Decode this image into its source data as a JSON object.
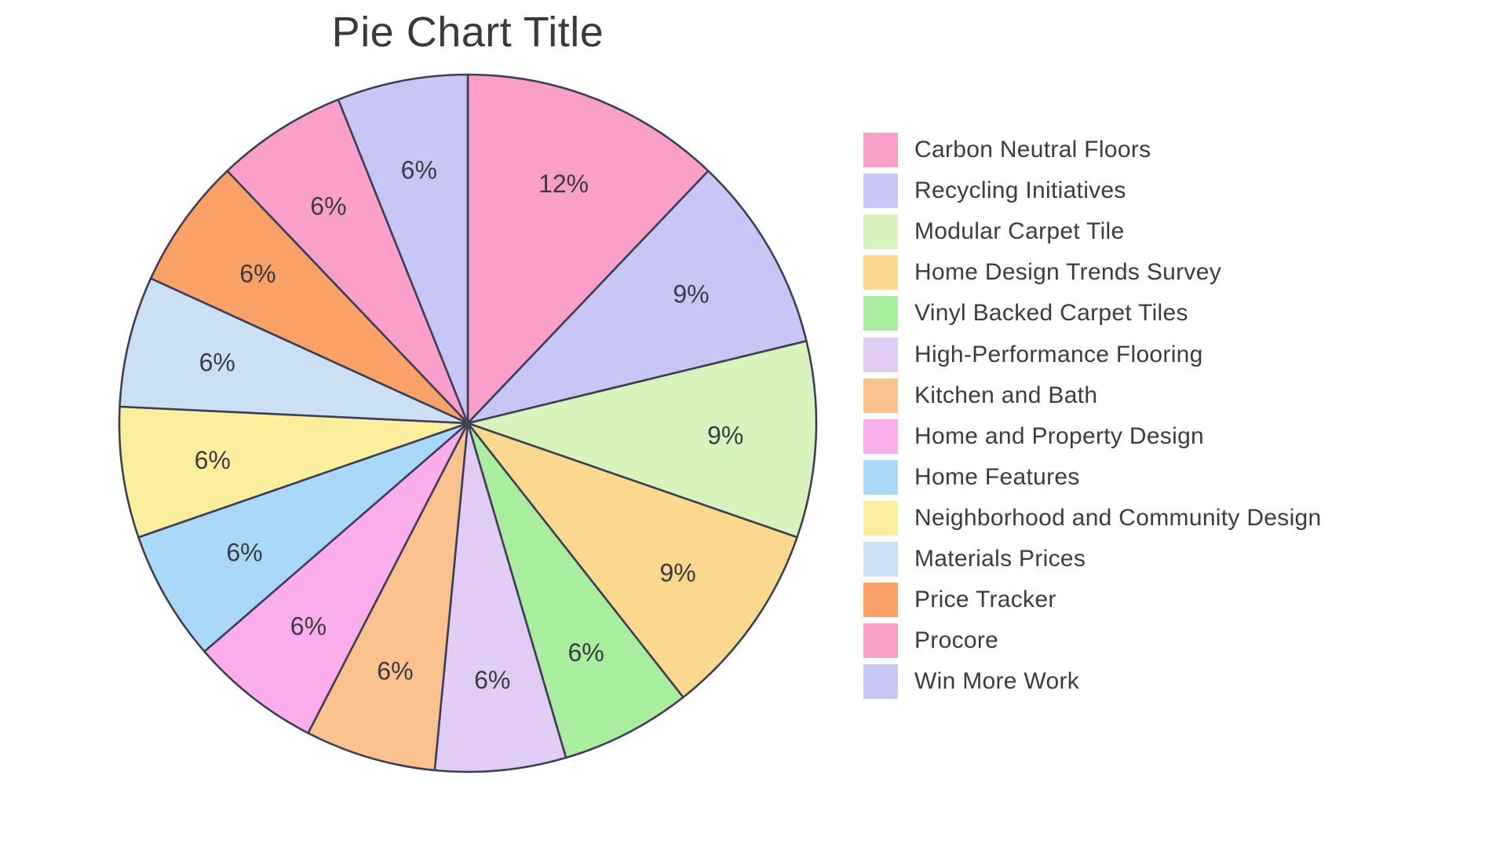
{
  "chart_data": {
    "type": "pie",
    "title": "Pie Chart Title",
    "legend_position": "right",
    "start_angle": "12 o'clock, clockwise",
    "wedge_border_color": "#3e3e54",
    "percent_label_color": "#3b3b46",
    "title_color": "#3a3a3a",
    "legend_text_color": "#3c3c3c",
    "slices": [
      {
        "label": "Carbon Neutral Floors",
        "percent": 12,
        "color": "#f99fca"
      },
      {
        "label": "Recycling Initiatives",
        "percent": 9,
        "color": "#c7c6f5"
      },
      {
        "label": "Modular Carpet Tile",
        "percent": 9,
        "color": "#d8f3bb"
      },
      {
        "label": "Home Design Trends Survey",
        "percent": 9,
        "color": "#fad88d"
      },
      {
        "label": "Vinyl Backed Carpet Tiles",
        "percent": 6,
        "color": "#a8ee9e"
      },
      {
        "label": "High-Performance Flooring",
        "percent": 6,
        "color": "#e1ccf5"
      },
      {
        "label": "Kitchen and Bath",
        "percent": 6,
        "color": "#fac28f"
      },
      {
        "label": "Home and Property Design",
        "percent": 6,
        "color": "#faaeec"
      },
      {
        "label": "Home Features",
        "percent": 6,
        "color": "#aad8f8"
      },
      {
        "label": "Neighborhood and Community Design",
        "percent": 6,
        "color": "#fbef9e"
      },
      {
        "label": "Materials Prices",
        "percent": 6,
        "color": "#cbe0f4"
      },
      {
        "label": "Price Tracker",
        "percent": 6,
        "color": "#faa168"
      },
      {
        "label": "Procore",
        "percent": 6,
        "color": "#f99fca"
      },
      {
        "label": "Win More Work",
        "percent": 6,
        "color": "#c7c6f5"
      }
    ]
  }
}
